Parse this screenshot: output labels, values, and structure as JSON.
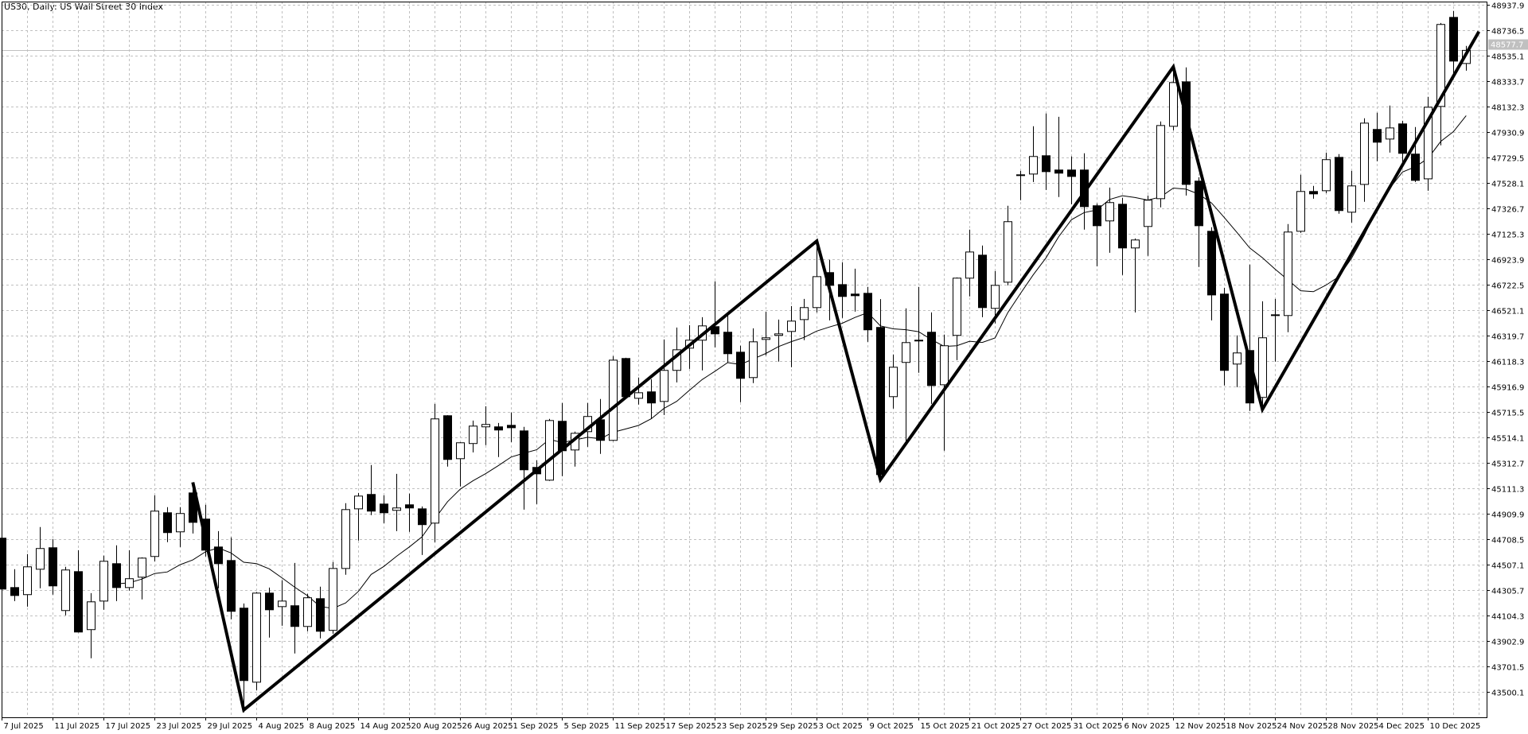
{
  "chart_title": "US30, Daily:  US Wall Street 30 Index",
  "colors": {
    "background": "#ffffff",
    "grid": "#c0c0c0",
    "candle_bull": "#ffffff",
    "candle_bear": "#000000",
    "outline": "#000000",
    "current_price_bg": "#c0c0c0",
    "current_price_text": "#ffffff"
  },
  "chart_data": {
    "type": "candlestick",
    "symbol": "US30",
    "timeframe": "Daily",
    "title": "US30, Daily:  US Wall Street 30 Index",
    "grid": true,
    "ylim": [
      43299,
      48964
    ],
    "y_tick_labels": [
      "48937.9",
      "48736.5",
      "48535.1",
      "48333.7",
      "48132.3",
      "47930.9",
      "47729.5",
      "47528.1",
      "47326.7",
      "47125.3",
      "46923.9",
      "46722.5",
      "46521.1",
      "46319.7",
      "46118.3",
      "45916.9",
      "45715.5",
      "45514.1",
      "45312.7",
      "45111.3",
      "44909.9",
      "44708.5",
      "44507.1",
      "44305.7",
      "44104.3",
      "43902.9",
      "43701.5",
      "43500.1"
    ],
    "x_tick_labels": [
      "7 Jul 2025",
      "11 Jul 2025",
      "17 Jul 2025",
      "23 Jul 2025",
      "29 Jul 2025",
      "4 Aug 2025",
      "8 Aug 2025",
      "14 Aug 2025",
      "20 Aug 2025",
      "26 Aug 2025",
      "1 Sep 2025",
      "5 Sep 2025",
      "11 Sep 2025",
      "17 Sep 2025",
      "23 Sep 2025",
      "29 Sep 2025",
      "3 Oct 2025",
      "9 Oct 2025",
      "15 Oct 2025",
      "21 Oct 2025",
      "27 Oct 2025",
      "31 Oct 2025",
      "6 Nov 2025",
      "12 Nov 2025",
      "18 Nov 2025",
      "24 Nov 2025",
      "28 Nov 2025",
      "4 Dec 2025",
      "10 Dec 2025"
    ],
    "current_price": "48577.7",
    "candle_columns": [
      "date",
      "open",
      "high",
      "low",
      "close"
    ],
    "candles": [
      [
        "2025-07-07",
        44717,
        44761,
        44257,
        44314
      ],
      [
        "2025-07-08",
        44326,
        44471,
        44219,
        44263
      ],
      [
        "2025-07-09",
        44270,
        44591,
        44175,
        44490
      ],
      [
        "2025-07-10",
        44471,
        44805,
        44320,
        44635
      ],
      [
        "2025-07-11",
        44641,
        44710,
        44270,
        44339
      ],
      [
        "2025-07-14",
        44144,
        44490,
        44106,
        44465
      ],
      [
        "2025-07-15",
        44452,
        44622,
        43970,
        43974
      ],
      [
        "2025-07-16",
        43993,
        44282,
        43766,
        44213
      ],
      [
        "2025-07-17",
        44219,
        44578,
        44150,
        44534
      ],
      [
        "2025-07-18",
        44515,
        44660,
        44219,
        44326
      ],
      [
        "2025-07-21",
        44326,
        44622,
        44301,
        44396
      ],
      [
        "2025-07-22",
        44408,
        44565,
        44232,
        44559
      ],
      [
        "2025-07-23",
        44572,
        45056,
        44534,
        44931
      ],
      [
        "2025-07-24",
        44918,
        44962,
        44685,
        44761
      ],
      [
        "2025-07-25",
        44767,
        44962,
        44647,
        44912
      ],
      [
        "2025-07-28",
        45075,
        45157,
        44754,
        44842
      ],
      [
        "2025-07-29",
        44868,
        44981,
        44572,
        44622
      ],
      [
        "2025-07-30",
        44647,
        44773,
        44320,
        44515
      ],
      [
        "2025-07-31",
        44540,
        44723,
        44075,
        44138
      ],
      [
        "2025-08-01",
        44163,
        44200,
        43338,
        43590
      ],
      [
        "2025-08-04",
        43577,
        44290,
        43514,
        44282
      ],
      [
        "2025-08-05",
        44282,
        44326,
        43930,
        44150
      ],
      [
        "2025-08-06",
        44175,
        44383,
        44024,
        44219
      ],
      [
        "2025-08-07",
        44182,
        44521,
        43804,
        44018
      ],
      [
        "2025-08-08",
        44018,
        44276,
        43980,
        44245
      ],
      [
        "2025-08-11",
        44238,
        44333,
        43924,
        43980
      ],
      [
        "2025-08-12",
        43987,
        44528,
        43961,
        44477
      ],
      [
        "2025-08-13",
        44477,
        44994,
        44427,
        44943
      ],
      [
        "2025-08-14",
        44949,
        45075,
        44698,
        45050
      ],
      [
        "2025-08-15",
        45063,
        45296,
        44899,
        44931
      ],
      [
        "2025-08-18",
        44987,
        45056,
        44836,
        44918
      ],
      [
        "2025-08-19",
        44937,
        45226,
        44773,
        44956
      ],
      [
        "2025-08-20",
        44981,
        45069,
        44767,
        44956
      ],
      [
        "2025-08-21",
        44949,
        44968,
        44584,
        44824
      ],
      [
        "2025-08-22",
        44836,
        45780,
        44685,
        45661
      ],
      [
        "2025-08-25",
        45686,
        45690,
        45283,
        45340
      ],
      [
        "2025-08-26",
        45346,
        45476,
        45126,
        45472
      ],
      [
        "2025-08-27",
        45466,
        45648,
        45396,
        45604
      ],
      [
        "2025-08-28",
        45598,
        45761,
        45453,
        45617
      ],
      [
        "2025-08-29",
        45598,
        45629,
        45359,
        45573
      ],
      [
        "2025-09-01",
        45610,
        45711,
        45478,
        45591
      ],
      [
        "2025-09-02",
        45566,
        45598,
        44943,
        45258
      ],
      [
        "2025-09-03",
        45277,
        45333,
        44987,
        45226
      ],
      [
        "2025-09-04",
        45176,
        45661,
        45170,
        45648
      ],
      [
        "2025-09-05",
        45642,
        45787,
        45208,
        45409
      ],
      [
        "2025-09-08",
        45415,
        45560,
        45283,
        45547
      ],
      [
        "2025-09-09",
        45560,
        45787,
        45440,
        45680
      ],
      [
        "2025-09-10",
        45654,
        45818,
        45384,
        45491
      ],
      [
        "2025-09-11",
        45491,
        46158,
        45485,
        46126
      ],
      [
        "2025-09-12",
        46139,
        46145,
        45824,
        45837
      ],
      [
        "2025-09-15",
        45824,
        45988,
        45774,
        45868
      ],
      [
        "2025-09-16",
        45875,
        45975,
        45661,
        45787
      ],
      [
        "2025-09-17",
        45799,
        46290,
        45692,
        46045
      ],
      [
        "2025-09-18",
        46045,
        46384,
        45950,
        46208
      ],
      [
        "2025-09-19",
        46221,
        46403,
        46057,
        46284
      ],
      [
        "2025-09-22",
        46284,
        46466,
        46045,
        46397
      ],
      [
        "2025-09-23",
        46391,
        46750,
        46227,
        46334
      ],
      [
        "2025-09-24",
        46347,
        46479,
        46108,
        46177
      ],
      [
        "2025-09-25",
        46189,
        46240,
        45793,
        45982
      ],
      [
        "2025-09-26",
        45988,
        46378,
        45944,
        46271
      ],
      [
        "2025-09-29",
        46290,
        46510,
        46164,
        46303
      ],
      [
        "2025-09-30",
        46322,
        46447,
        46114,
        46334
      ],
      [
        "2025-10-01",
        46353,
        46554,
        46070,
        46435
      ],
      [
        "2025-10-02",
        46447,
        46611,
        46284,
        46542
      ],
      [
        "2025-10-03",
        46542,
        47071,
        46504,
        46787
      ],
      [
        "2025-10-06",
        46819,
        46920,
        46441,
        46718
      ],
      [
        "2025-10-07",
        46724,
        46901,
        46460,
        46630
      ],
      [
        "2025-10-08",
        46649,
        46850,
        46510,
        46636
      ],
      [
        "2025-10-09",
        46655,
        46706,
        46271,
        46366
      ],
      [
        "2025-10-10",
        46385,
        46609,
        45182,
        45220
      ],
      [
        "2025-10-13",
        45837,
        46171,
        45743,
        46070
      ],
      [
        "2025-10-14",
        46108,
        46536,
        45453,
        46265
      ],
      [
        "2025-10-15",
        46284,
        46706,
        46026,
        46278
      ],
      [
        "2025-10-16",
        46347,
        46504,
        45780,
        45925
      ],
      [
        "2025-10-17",
        45931,
        46328,
        45409,
        46240
      ],
      [
        "2025-10-20",
        46322,
        46781,
        46126,
        46775
      ],
      [
        "2025-10-21",
        46775,
        47159,
        46630,
        46982
      ],
      [
        "2025-10-22",
        46957,
        47033,
        46466,
        46542
      ],
      [
        "2025-10-23",
        46536,
        46831,
        46416,
        46718
      ],
      [
        "2025-10-24",
        46743,
        47348,
        46718,
        47222
      ],
      [
        "2025-10-27",
        47587,
        47624,
        47392,
        47593
      ],
      [
        "2025-10-28",
        47599,
        47977,
        47536,
        47738
      ],
      [
        "2025-10-29",
        47744,
        48078,
        47473,
        47618
      ],
      [
        "2025-10-30",
        47631,
        48052,
        47417,
        47606
      ],
      [
        "2025-10-31",
        47631,
        47738,
        47360,
        47580
      ],
      [
        "2025-11-03",
        47631,
        47763,
        47159,
        47341
      ],
      [
        "2025-11-04",
        47348,
        47366,
        46869,
        47190
      ],
      [
        "2025-11-05",
        47228,
        47492,
        46976,
        47373
      ],
      [
        "2025-11-06",
        47360,
        47410,
        46800,
        47014
      ],
      [
        "2025-11-07",
        47014,
        47089,
        46504,
        47077
      ],
      [
        "2025-11-10",
        47184,
        47429,
        46951,
        47392
      ],
      [
        "2025-11-11",
        47404,
        48015,
        47335,
        47983
      ],
      [
        "2025-11-12",
        47977,
        48462,
        47945,
        48323
      ],
      [
        "2025-11-13",
        48329,
        48443,
        47429,
        47517
      ],
      [
        "2025-11-14",
        47543,
        47574,
        46863,
        47190
      ],
      [
        "2025-11-17",
        47146,
        47178,
        46441,
        46642
      ],
      [
        "2025-11-18",
        46649,
        46699,
        45925,
        46045
      ],
      [
        "2025-11-19",
        46095,
        46322,
        45912,
        46183
      ],
      [
        "2025-11-20",
        46202,
        46882,
        45724,
        45787
      ],
      [
        "2025-11-21",
        45831,
        46592,
        45717,
        46303
      ],
      [
        "2025-11-24",
        46479,
        46611,
        46114,
        46485
      ],
      [
        "2025-11-25",
        46479,
        47203,
        46347,
        47140
      ],
      [
        "2025-11-26",
        47146,
        47593,
        47134,
        47461
      ],
      [
        "2025-11-27",
        47461,
        47505,
        47404,
        47442
      ],
      [
        "2025-11-28",
        47467,
        47769,
        47448,
        47713
      ],
      [
        "2025-12-01",
        47731,
        47757,
        47285,
        47310
      ],
      [
        "2025-12-02",
        47297,
        47624,
        47215,
        47505
      ],
      [
        "2025-12-03",
        47517,
        48040,
        47379,
        48002
      ],
      [
        "2025-12-04",
        47952,
        48084,
        47700,
        47851
      ],
      [
        "2025-12-05",
        47876,
        48141,
        47769,
        47964
      ],
      [
        "2025-12-08",
        47996,
        48021,
        47675,
        47763
      ],
      [
        "2025-12-09",
        47757,
        47971,
        47536,
        47549
      ],
      [
        "2025-12-10",
        47561,
        48210,
        47467,
        48128
      ],
      [
        "2025-12-11",
        48134,
        48795,
        47826,
        48783
      ],
      [
        "2025-12-12",
        48839,
        48890,
        48367,
        48493
      ],
      [
        "2025-12-15",
        48474,
        48613,
        48417,
        48577.7
      ]
    ],
    "moving_average": {
      "type": "SMA",
      "color": "#000000"
    },
    "zigzag": [
      {
        "date": "2025-07-28",
        "price": 45159
      },
      {
        "date": "2025-08-01",
        "price": 43357
      },
      {
        "date": "2025-10-03",
        "price": 47069
      },
      {
        "date": "2025-10-10",
        "price": 45181
      },
      {
        "date": "2025-11-12",
        "price": 48447
      },
      {
        "date": "2025-11-21",
        "price": 45736
      },
      {
        "date": "2025-12-16",
        "price": 48726
      }
    ]
  }
}
